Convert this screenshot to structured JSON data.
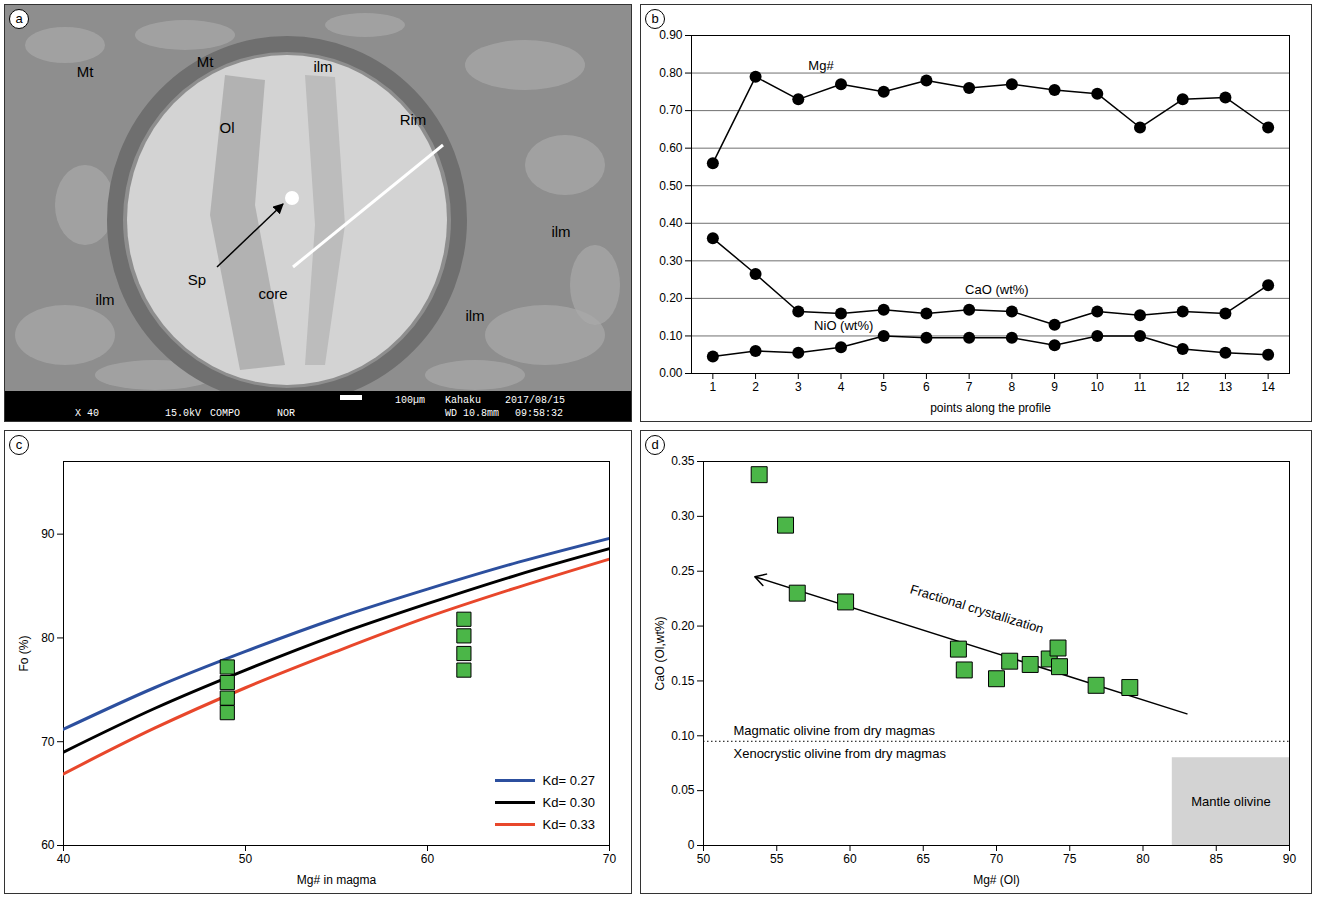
{
  "chart_data": [
    {
      "type": "image",
      "panel": "a",
      "labels": [
        "Mt",
        "Mt",
        "ilm",
        "Ol",
        "Sp",
        "Rim",
        "core",
        "ilm",
        "ilm",
        "ilm"
      ],
      "info_bar": [
        "100µm",
        "Kahaku",
        "2017/08/15",
        "X 40",
        "15.0kV",
        "COMPO",
        "NOR",
        "WD 10.8mm",
        "09:58:32"
      ]
    },
    {
      "type": "line",
      "panel": "b",
      "x": [
        1,
        2,
        3,
        4,
        5,
        6,
        7,
        8,
        9,
        10,
        11,
        12,
        13,
        14
      ],
      "xlim": [
        0.5,
        14.5
      ],
      "xticks": [
        1,
        2,
        3,
        4,
        5,
        6,
        7,
        8,
        9,
        10,
        11,
        12,
        13,
        14
      ],
      "ylim": [
        0,
        0.9
      ],
      "yticks": [
        {
          "value": 0,
          "label": "0.00"
        },
        {
          "value": 0.1,
          "label": "0.10"
        },
        {
          "value": 0.2,
          "label": "0.20"
        },
        {
          "value": 0.3,
          "label": "0.30"
        },
        {
          "value": 0.4,
          "label": "0.40"
        },
        {
          "value": 0.5,
          "label": "0.50"
        },
        {
          "value": 0.6,
          "label": "0.60"
        },
        {
          "value": 0.7,
          "label": "0.70"
        },
        {
          "value": 0.8,
          "label": "0.80"
        },
        {
          "value": 0.9,
          "label": "0.90"
        }
      ],
      "grid": true,
      "xlabel": "points along the profile",
      "series": [
        {
          "name": "Mg#",
          "color": "#000000",
          "marker": "circle",
          "values": [
            0.56,
            0.79,
            0.73,
            0.77,
            0.75,
            0.78,
            0.76,
            0.77,
            0.755,
            0.745,
            0.655,
            0.73,
            0.735,
            0.655
          ]
        },
        {
          "name": "CaO (wt%)",
          "color": "#000000",
          "marker": "circle",
          "values": [
            0.36,
            0.265,
            0.165,
            0.16,
            0.17,
            0.16,
            0.17,
            0.165,
            0.13,
            0.165,
            0.155,
            0.165,
            0.16,
            0.235
          ]
        },
        {
          "name": "NiO (wt%)",
          "color": "#000000",
          "marker": "circle",
          "values": [
            0.045,
            0.06,
            0.055,
            0.07,
            0.1,
            0.095,
            0.095,
            0.095,
            0.075,
            0.1,
            0.1,
            0.065,
            0.055,
            0.05
          ]
        }
      ]
    },
    {
      "type": "line",
      "panel": "c",
      "x": [
        40,
        45,
        50,
        55,
        60,
        65,
        70
      ],
      "xlim": [
        40,
        70
      ],
      "xticks": [
        40,
        50,
        60,
        70
      ],
      "ylim": [
        60,
        97
      ],
      "yticks": [
        60,
        70,
        80,
        90
      ],
      "xlabel": "Mg# in magma",
      "ylabel": "Fo (%)",
      "legend": "bottom-right",
      "series": [
        {
          "name": "Kd= 0.27",
          "color": "#2c4f9e",
          "values": [
            71.2,
            75.2,
            78.7,
            81.9,
            84.7,
            87.3,
            89.6
          ]
        },
        {
          "name": "Kd= 0.30",
          "color": "#000000",
          "values": [
            69.0,
            73.2,
            76.9,
            80.3,
            83.3,
            86.1,
            88.6
          ]
        },
        {
          "name": "Kd= 0.33",
          "color": "#e8472b",
          "values": [
            66.9,
            71.3,
            75.2,
            78.7,
            82.0,
            84.9,
            87.6
          ]
        }
      ],
      "points": {
        "marker": "square",
        "color": "#4bb648",
        "x": [
          49,
          49,
          49,
          49,
          62,
          62,
          62,
          62
        ],
        "y": [
          77.2,
          75.7,
          74.2,
          72.8,
          81.8,
          80.2,
          78.5,
          76.9
        ]
      }
    },
    {
      "type": "scatter",
      "panel": "d",
      "x": [
        53.8,
        55.6,
        56.4,
        59.7,
        67.4,
        67.8,
        70.0,
        70.9,
        72.3,
        73.6,
        74.2,
        74.3,
        76.8,
        79.1
      ],
      "values": [
        0.338,
        0.292,
        0.23,
        0.222,
        0.179,
        0.16,
        0.152,
        0.168,
        0.165,
        0.17,
        0.18,
        0.163,
        0.146,
        0.144
      ],
      "color": "#4bb648",
      "marker": "square",
      "xlim": [
        50,
        90
      ],
      "xticks": [
        50,
        55,
        60,
        65,
        70,
        75,
        80,
        85,
        90
      ],
      "ylim": [
        0,
        0.35
      ],
      "yticks": [
        0,
        0.05,
        {
          "value": 0.1,
          "label": "0.10"
        },
        0.15,
        {
          "value": 0.2,
          "label": "0.20"
        },
        0.25,
        {
          "value": 0.3,
          "label": "0.30"
        },
        0.35
      ],
      "xlabel": "Mg# (Ol)",
      "ylabel": "CaO (Ol,wt%)",
      "arrow": {
        "x1": 83,
        "y1": 0.12,
        "x2": 53.5,
        "y2": 0.245,
        "label": "Fractional crystallization"
      },
      "divider": {
        "y": 0.095,
        "line_style": "dotted",
        "above": "Magmatic olivine from dry magmas",
        "below": "Xenocrystic olivine from dry magmas"
      },
      "region": {
        "x": [
          82,
          90
        ],
        "y": [
          0,
          0.08
        ],
        "label": "Mantle olivine",
        "color": "#d3d3d3"
      }
    }
  ]
}
